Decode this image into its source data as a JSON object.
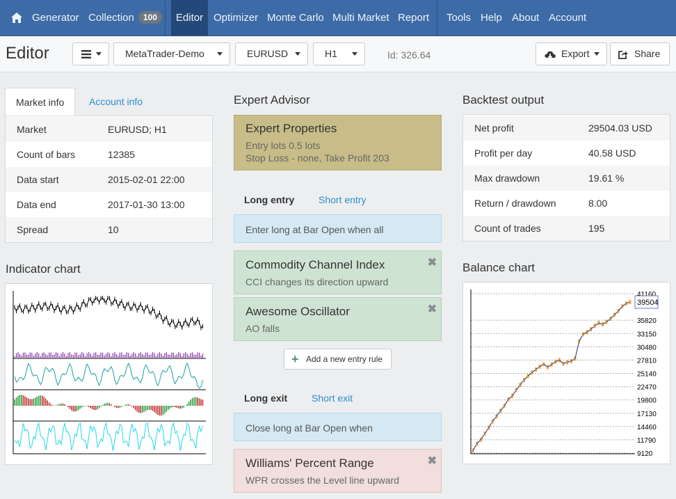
{
  "nav": {
    "items": [
      {
        "label": "Generator"
      },
      {
        "label": "Collection",
        "badge": "100"
      },
      {
        "label": "Editor"
      },
      {
        "label": "Optimizer"
      },
      {
        "label": "Monte Carlo"
      },
      {
        "label": "Multi Market"
      },
      {
        "label": "Report"
      },
      {
        "label": "Tools"
      },
      {
        "label": "Help"
      },
      {
        "label": "About"
      },
      {
        "label": "Account"
      }
    ]
  },
  "toolbar": {
    "title": "Editor",
    "server": "MetaTrader-Demo",
    "symbol": "EURUSD",
    "period": "H1",
    "id_text": "Id: 326.64",
    "export_label": "Export",
    "share_label": "Share"
  },
  "market": {
    "tabs": [
      "Market info",
      "Account info"
    ],
    "rows": [
      {
        "k": "Market",
        "v": "EURUSD; H1"
      },
      {
        "k": "Count of bars",
        "v": "12385"
      },
      {
        "k": "Data start",
        "v": "2015-02-01 22:00"
      },
      {
        "k": "Data end",
        "v": "2017-01-30 13:00"
      },
      {
        "k": "Spread",
        "v": "10"
      }
    ]
  },
  "indicator_chart": {
    "title": "Indicator chart"
  },
  "expert": {
    "title": "Expert Advisor",
    "props_title": "Expert Properties",
    "props_line1": "Entry lots 0.5 lots",
    "props_line2": "Stop Loss - none, Take Profit 203",
    "entry_tabs": [
      "Long entry",
      "Short entry"
    ],
    "entry_condition": "Enter long at Bar Open when all",
    "entry_rules": [
      {
        "title": "Commodity Channel Index",
        "desc": "CCI changes its direction upward"
      },
      {
        "title": "Awesome Oscillator",
        "desc": "AO falls"
      }
    ],
    "add_rule_label": "Add a new entry rule",
    "exit_tabs": [
      "Long exit",
      "Short exit"
    ],
    "exit_condition": "Close long at Bar Open when",
    "exit_rules": [
      {
        "title": "Williams' Percent Range",
        "desc": "WPR crosses the Level line upward"
      }
    ],
    "close_glyph": "✖"
  },
  "backtest": {
    "title": "Backtest output",
    "rows": [
      {
        "k": "Net profit",
        "v": "29504.03 USD"
      },
      {
        "k": "Profit per day",
        "v": "40.58 USD"
      },
      {
        "k": "Max drawdown",
        "v": "19.61 %"
      },
      {
        "k": "Return / drawdown",
        "v": "8.00"
      },
      {
        "k": "Count of trades",
        "v": "195"
      }
    ]
  },
  "balance_chart": {
    "title": "Balance chart",
    "current_label": "39504"
  },
  "chart_data": [
    {
      "type": "line",
      "title": "Balance chart",
      "ylim": [
        9120,
        41160
      ],
      "yticks": [
        "41160",
        "35820",
        "33150",
        "30480",
        "27810",
        "25140",
        "22470",
        "19800",
        "17130",
        "14460",
        "11790",
        "9120"
      ],
      "current": 39504,
      "grid": true,
      "legend": "none",
      "series": [
        {
          "values": [
            9600,
            11000,
            11800,
            13000,
            14200,
            15500,
            16500,
            17600,
            18600,
            19900,
            20600,
            21800,
            22800,
            23800,
            24600,
            25300,
            25900,
            26500,
            27000,
            26400,
            26900,
            27500,
            27800,
            27100,
            27400,
            27600,
            28100,
            31500,
            33000,
            33400,
            34000,
            34700,
            35300,
            35000,
            35500,
            36100,
            36900,
            37700,
            38600,
            39200,
            39504
          ]
        }
      ],
      "colors": {
        "line": "#3a4a8a",
        "bars": "#e8952a"
      }
    },
    {
      "type": "line",
      "title": "Indicator chart",
      "legend": "none",
      "grid": false,
      "panes": [
        "price",
        "cci",
        "awesome-oscillator",
        "williams-percent-range"
      ],
      "colors": {
        "price": "#000000",
        "volume": "#8a2fa8",
        "cci": "#1aa0a0",
        "ao_up": "#2a9a3a",
        "ao_down": "#c02a2a",
        "wpr": "#22d8e6"
      }
    }
  ]
}
